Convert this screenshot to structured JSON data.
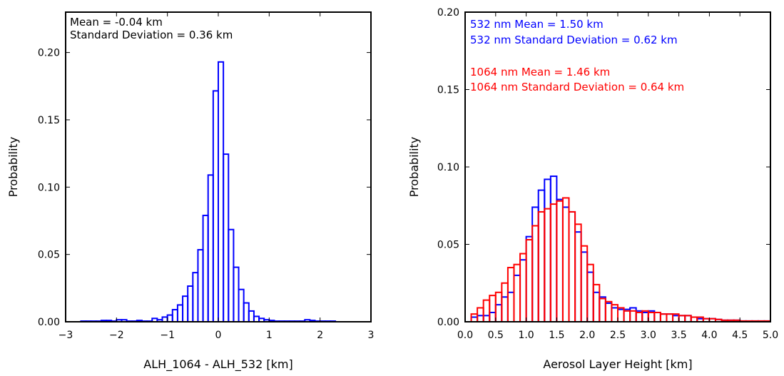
{
  "chart_data": [
    {
      "type": "histogram",
      "xlabel": "ALH_1064 - ALH_532 [km]",
      "ylabel": "Probability",
      "xlim": [
        -3,
        3
      ],
      "ylim": [
        0,
        0.23
      ],
      "x_ticks": [
        "−3",
        "−2",
        "−1",
        "0",
        "1",
        "2",
        "3"
      ],
      "y_ticks": [
        "0.00",
        "0.05",
        "0.10",
        "0.15",
        "0.20"
      ],
      "x_tick_values": [
        -3,
        -2,
        -1,
        0,
        1,
        2,
        3
      ],
      "y_tick_values": [
        0,
        0.05,
        0.1,
        0.15,
        0.2
      ],
      "annotations": [
        "Mean = -0.04 km",
        "Standard Deviation = 0.36 km"
      ],
      "bin_width": 0.1,
      "series": [
        {
          "color": "#0000ff",
          "bin_starts": [
            -2.7,
            -2.6,
            -2.5,
            -2.4,
            -2.3,
            -2.2,
            -2.1,
            -2.0,
            -1.9,
            -1.8,
            -1.7,
            -1.6,
            -1.5,
            -1.4,
            -1.3,
            -1.2,
            -1.1,
            -1.0,
            -0.9,
            -0.8,
            -0.7,
            -0.6,
            -0.5,
            -0.4,
            -0.3,
            -0.2,
            -0.1,
            0.0,
            0.1,
            0.2,
            0.3,
            0.4,
            0.5,
            0.6,
            0.7,
            0.8,
            0.9,
            1.0,
            1.1,
            1.2,
            1.3,
            1.4,
            1.5,
            1.6,
            1.7,
            1.8,
            1.9,
            2.0,
            2.1,
            2.2
          ],
          "values": [
            0.0005,
            0.0005,
            0.0005,
            0.0005,
            0.001,
            0.001,
            0.0005,
            0.0015,
            0.0015,
            0.0005,
            0.0005,
            0.001,
            0.0005,
            0.0005,
            0.0025,
            0.0015,
            0.0035,
            0.005,
            0.009,
            0.0125,
            0.019,
            0.0265,
            0.0365,
            0.0535,
            0.079,
            0.109,
            0.1715,
            0.193,
            0.1245,
            0.0685,
            0.0405,
            0.024,
            0.014,
            0.008,
            0.004,
            0.0025,
            0.0015,
            0.001,
            0.0005,
            0.0005,
            0.0005,
            0.0005,
            0.0005,
            0.0005,
            0.0015,
            0.001,
            0.0005,
            0.0005,
            0.0005,
            0.0005
          ]
        }
      ]
    },
    {
      "type": "histogram",
      "xlabel": "Aerosol Layer Height [km]",
      "ylabel": "Probability",
      "xlim": [
        0,
        5
      ],
      "ylim": [
        0,
        0.2
      ],
      "x_ticks": [
        "0.0",
        "0.5",
        "1.0",
        "1.5",
        "2.0",
        "2.5",
        "3.0",
        "3.5",
        "4.0",
        "4.5",
        "5.0"
      ],
      "y_ticks": [
        "0.00",
        "0.05",
        "0.10",
        "0.15",
        "0.20"
      ],
      "x_tick_values": [
        0,
        0.5,
        1.0,
        1.5,
        2.0,
        2.5,
        3.0,
        3.5,
        4.0,
        4.5,
        5.0
      ],
      "y_tick_values": [
        0,
        0.05,
        0.1,
        0.15,
        0.2
      ],
      "annotations_532": [
        "532 nm Mean = 1.50 km",
        "532 nm Standard Deviation = 0.62 km"
      ],
      "annotations_1064": [
        "1064 nm Mean = 1.46 km",
        "1064 nm Standard Deviation = 0.64 km"
      ],
      "bin_width": 0.1,
      "series": [
        {
          "label": "532 nm",
          "color": "#0000ff",
          "bin_starts": [
            0.1,
            0.2,
            0.3,
            0.4,
            0.5,
            0.6,
            0.7,
            0.8,
            0.9,
            1.0,
            1.1,
            1.2,
            1.3,
            1.4,
            1.5,
            1.6,
            1.7,
            1.8,
            1.9,
            2.0,
            2.1,
            2.2,
            2.3,
            2.4,
            2.5,
            2.6,
            2.7,
            2.8,
            2.9,
            3.0,
            3.1,
            3.2,
            3.3,
            3.4,
            3.5,
            3.6,
            3.7,
            3.8,
            3.9,
            4.0,
            4.1,
            4.2,
            4.3,
            4.4,
            4.5,
            4.6,
            4.7,
            4.8,
            4.9
          ],
          "values": [
            0.003,
            0.004,
            0.004,
            0.006,
            0.011,
            0.016,
            0.019,
            0.03,
            0.04,
            0.055,
            0.074,
            0.085,
            0.092,
            0.094,
            0.079,
            0.074,
            0.071,
            0.058,
            0.045,
            0.032,
            0.019,
            0.016,
            0.012,
            0.009,
            0.008,
            0.008,
            0.009,
            0.007,
            0.006,
            0.007,
            0.006,
            0.005,
            0.005,
            0.004,
            0.004,
            0.004,
            0.003,
            0.002,
            0.002,
            0.002,
            0.0015,
            0.001,
            0.001,
            0.001,
            0.0005,
            0.0005,
            0.0005,
            0.0005,
            0.0005
          ]
        },
        {
          "label": "1064 nm",
          "color": "#ff0000",
          "bin_starts": [
            0.1,
            0.2,
            0.3,
            0.4,
            0.5,
            0.6,
            0.7,
            0.8,
            0.9,
            1.0,
            1.1,
            1.2,
            1.3,
            1.4,
            1.5,
            1.6,
            1.7,
            1.8,
            1.9,
            2.0,
            2.1,
            2.2,
            2.3,
            2.4,
            2.5,
            2.6,
            2.7,
            2.8,
            2.9,
            3.0,
            3.1,
            3.2,
            3.3,
            3.4,
            3.5,
            3.6,
            3.7,
            3.8,
            3.9,
            4.0,
            4.1,
            4.2,
            4.3,
            4.4,
            4.5,
            4.6,
            4.7,
            4.8,
            4.9
          ],
          "values": [
            0.005,
            0.009,
            0.014,
            0.017,
            0.019,
            0.025,
            0.035,
            0.037,
            0.044,
            0.053,
            0.062,
            0.071,
            0.073,
            0.076,
            0.078,
            0.08,
            0.071,
            0.063,
            0.049,
            0.037,
            0.024,
            0.015,
            0.013,
            0.011,
            0.009,
            0.007,
            0.007,
            0.006,
            0.007,
            0.006,
            0.006,
            0.005,
            0.005,
            0.005,
            0.004,
            0.004,
            0.003,
            0.003,
            0.002,
            0.002,
            0.0015,
            0.001,
            0.001,
            0.001,
            0.0005,
            0.0005,
            0.0005,
            0.0005,
            0.0005
          ]
        }
      ]
    }
  ]
}
